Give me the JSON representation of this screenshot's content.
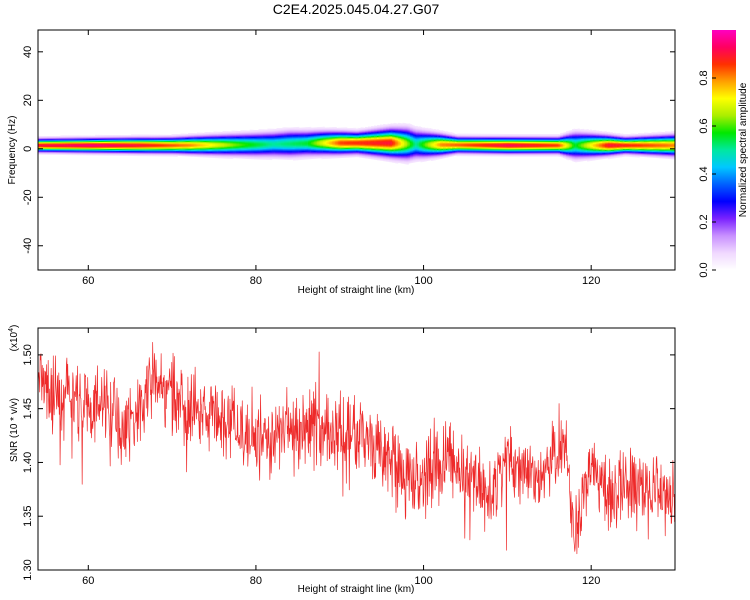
{
  "title": "C2E4.2025.045.04.27.G07",
  "top_panel": {
    "xlabel": "Height of straight line (km)",
    "ylabel": "Frequency (Hz)",
    "xlim": [
      54,
      130
    ],
    "ylim": [
      -50,
      49
    ],
    "xticks": [
      "60",
      "80",
      "100",
      "120"
    ],
    "yticks": [
      "-40",
      "-20",
      "0",
      "20",
      "40"
    ],
    "colorbar_label": "Normalized spectral amplitude",
    "colorbar_ticks": [
      "0.0",
      "0.2",
      "0.4",
      "0.6",
      "0.8"
    ],
    "colormap": [
      "#ffffff",
      "#f0d8ff",
      "#c890ff",
      "#7a22ff",
      "#0000ff",
      "#0060ff",
      "#00c8ff",
      "#00e8a0",
      "#00e800",
      "#aaee00",
      "#ffff00",
      "#ffa000",
      "#ff3000",
      "#ff0060",
      "#ff00c0"
    ]
  },
  "bottom_panel": {
    "xlabel": "Height of straight line (km)",
    "ylabel": "SNR (10 * v/v)",
    "scale_label": "(x10",
    "scale_exp": "4",
    "scale_close": ")",
    "xlim": [
      54,
      130
    ],
    "ylim": [
      1.3,
      1.525
    ],
    "xticks": [
      "60",
      "80",
      "100",
      "120"
    ],
    "yticks": [
      "1.30",
      "1.35",
      "1.40",
      "1.45",
      "1.50"
    ],
    "line_color": "#ee2a2a"
  },
  "chart_data": [
    {
      "type": "heatmap",
      "title": "C2E4.2025.045.04.27.G07",
      "xlabel": "Height of straight line (km)",
      "ylabel": "Frequency (Hz)",
      "xlim": [
        54,
        130
      ],
      "ylim": [
        -50,
        49
      ],
      "colorbar": {
        "label": "Normalized spectral amplitude",
        "range": [
          0,
          1
        ]
      },
      "center_frequency_hz": [
        [
          54,
          1.5
        ],
        [
          70,
          1.5
        ],
        [
          80,
          1.8
        ],
        [
          88,
          2.5
        ],
        [
          96,
          2.5
        ],
        [
          100,
          1.8
        ],
        [
          110,
          1.5
        ],
        [
          130,
          1.5
        ]
      ],
      "peak_amplitude": [
        [
          54,
          0.9
        ],
        [
          60,
          0.95
        ],
        [
          66,
          0.9
        ],
        [
          72,
          0.8
        ],
        [
          78,
          0.6
        ],
        [
          82,
          0.5
        ],
        [
          86,
          0.55
        ],
        [
          90,
          0.85
        ],
        [
          96,
          0.9
        ],
        [
          99,
          0.5
        ],
        [
          102,
          0.8
        ],
        [
          110,
          0.92
        ],
        [
          116,
          0.85
        ],
        [
          118,
          0.55
        ],
        [
          122,
          0.9
        ],
        [
          126,
          0.85
        ],
        [
          130,
          0.8
        ]
      ],
      "band_halfwidth_hz": [
        [
          54,
          2.5
        ],
        [
          70,
          3
        ],
        [
          84,
          5
        ],
        [
          92,
          4
        ],
        [
          98,
          6
        ],
        [
          104,
          3
        ],
        [
          116,
          3
        ],
        [
          118,
          5
        ],
        [
          124,
          3
        ],
        [
          130,
          4
        ]
      ]
    },
    {
      "type": "line",
      "xlabel": "Height of straight line (km)",
      "ylabel": "SNR (10 * v/v)",
      "xlim": [
        54,
        130
      ],
      "ylim": [
        1.3,
        1.525
      ],
      "y_multiplier": 10000,
      "series": [
        {
          "x": [
            54,
            56,
            58,
            60,
            62,
            64,
            66,
            68,
            70,
            72,
            74,
            76,
            78,
            80,
            82,
            84,
            86,
            88,
            90,
            92,
            94,
            96,
            98,
            100,
            102,
            104,
            106,
            108,
            110,
            112,
            114,
            116,
            117,
            118,
            119,
            120,
            122,
            124,
            126,
            128,
            130
          ],
          "y": [
            1.47,
            1.46,
            1.46,
            1.45,
            1.46,
            1.43,
            1.45,
            1.48,
            1.46,
            1.45,
            1.44,
            1.44,
            1.43,
            1.42,
            1.42,
            1.43,
            1.43,
            1.43,
            1.43,
            1.43,
            1.42,
            1.4,
            1.38,
            1.39,
            1.4,
            1.4,
            1.38,
            1.37,
            1.4,
            1.39,
            1.39,
            1.41,
            1.42,
            1.33,
            1.36,
            1.39,
            1.37,
            1.38,
            1.38,
            1.37,
            1.37
          ]
        }
      ]
    }
  ]
}
